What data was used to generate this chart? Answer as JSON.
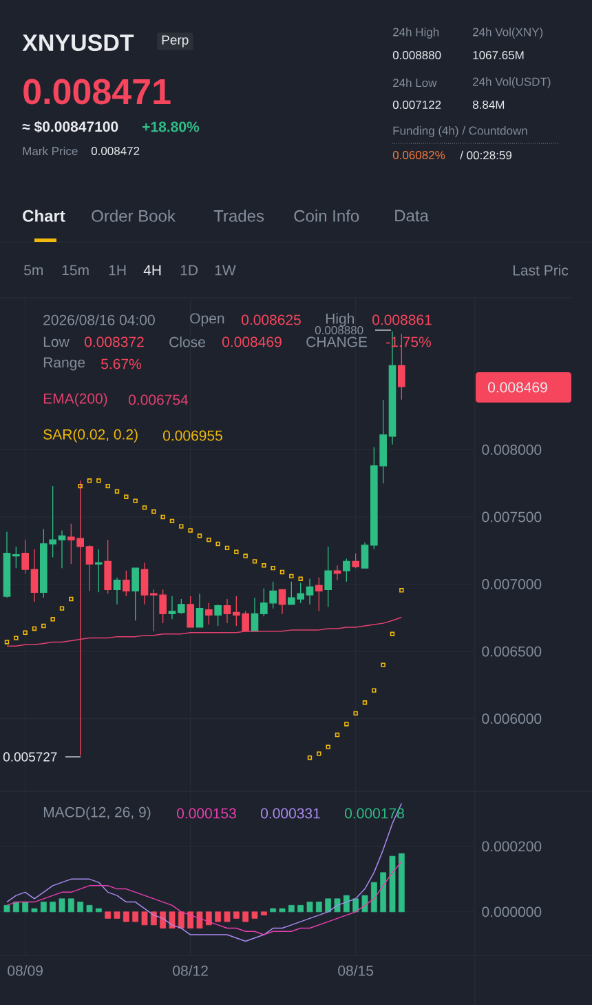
{
  "chart_data": [
    {
      "type": "candlestick",
      "title": "XNYUSDT",
      "categories": [
        null,
        null,
        null,
        null,
        null,
        null,
        null,
        null,
        null,
        null,
        null,
        null,
        null,
        null,
        null,
        null,
        null,
        null,
        null,
        null,
        null,
        null,
        null,
        null,
        null,
        null,
        null,
        null,
        null,
        null,
        null,
        null,
        null,
        null,
        null,
        null,
        null,
        null,
        null,
        null,
        null,
        null,
        null,
        null
      ],
      "ohlc": [
        [
          0.00691,
          0.00739,
          0.0069,
          0.00723
        ],
        [
          0.00721,
          0.00728,
          0.00712,
          0.00722
        ],
        [
          0.00723,
          0.00733,
          0.00708,
          0.00711
        ],
        [
          0.00711,
          0.00726,
          0.00687,
          0.00694
        ],
        [
          0.00694,
          0.00741,
          0.0069,
          0.0073
        ],
        [
          0.0073,
          0.00773,
          0.0072,
          0.00733
        ],
        [
          0.00733,
          0.0074,
          0.00712,
          0.00736
        ],
        [
          0.00735,
          0.00745,
          0.00715,
          0.00733
        ],
        [
          0.00734,
          0.00777,
          0.005727,
          0.00728
        ],
        [
          0.00728,
          0.00729,
          0.00695,
          0.00715
        ],
        [
          0.00715,
          0.00726,
          0.00694,
          0.00716
        ],
        [
          0.00717,
          0.00733,
          0.00693,
          0.00696
        ],
        [
          0.00696,
          0.00705,
          0.00685,
          0.00703
        ],
        [
          0.00703,
          0.0071,
          0.00691,
          0.00695
        ],
        [
          0.00695,
          0.00712,
          0.00673,
          0.00712
        ],
        [
          0.00711,
          0.00716,
          0.00685,
          0.00692
        ],
        [
          0.00693,
          0.00696,
          0.00665,
          0.00692
        ],
        [
          0.00692,
          0.00696,
          0.00671,
          0.00678
        ],
        [
          0.00678,
          0.00691,
          0.00674,
          0.0068
        ],
        [
          0.00679,
          0.00689,
          0.00678,
          0.00685
        ],
        [
          0.00685,
          0.00691,
          0.00668,
          0.00668
        ],
        [
          0.00668,
          0.00693,
          0.00668,
          0.00682
        ],
        [
          0.00681,
          0.00686,
          0.0067,
          0.00677
        ],
        [
          0.00677,
          0.00685,
          0.00669,
          0.00684
        ],
        [
          0.00684,
          0.00689,
          0.00671,
          0.00678
        ],
        [
          0.00679,
          0.00691,
          0.00669,
          0.00677
        ],
        [
          0.00678,
          0.0068,
          0.00665,
          0.00665
        ],
        [
          0.00665,
          0.0069,
          0.00665,
          0.00678
        ],
        [
          0.00678,
          0.00697,
          0.00676,
          0.00686
        ],
        [
          0.00686,
          0.00702,
          0.00682,
          0.00695
        ],
        [
          0.00696,
          0.00696,
          0.00678,
          0.00685
        ],
        [
          0.00685,
          0.00702,
          0.00685,
          0.0069
        ],
        [
          0.00689,
          0.00701,
          0.00686,
          0.00693
        ],
        [
          0.00692,
          0.00704,
          0.00685,
          0.00698
        ],
        [
          0.00699,
          0.00705,
          0.0068,
          0.00695
        ],
        [
          0.00696,
          0.00728,
          0.00683,
          0.0071
        ],
        [
          0.0071,
          0.00714,
          0.00703,
          0.00708
        ],
        [
          0.0071,
          0.00719,
          0.00702,
          0.00717
        ],
        [
          0.00717,
          0.00723,
          0.00712,
          0.00713
        ],
        [
          0.00712,
          0.00731,
          0.00712,
          0.00729
        ],
        [
          0.00729,
          0.00802,
          0.00726,
          0.00788
        ],
        [
          0.00788,
          0.00837,
          0.00775,
          0.00811
        ],
        [
          0.0081,
          0.00888,
          0.00804,
          0.008625
        ],
        [
          0.008625,
          0.008861,
          0.008372,
          0.008469
        ]
      ],
      "colors": [
        "#2ebd85",
        "#2ebd85",
        "#f6465d",
        "#f6465d",
        "#2ebd85",
        "#2ebd85",
        "#2ebd85",
        "#f6465d",
        "#f6465d",
        "#f6465d",
        "#2ebd85",
        "#f6465d",
        "#2ebd85",
        "#f6465d",
        "#2ebd85",
        "#f6465d",
        "#f6465d",
        "#f6465d",
        "#2ebd85",
        "#2ebd85",
        "#f6465d",
        "#2ebd85",
        "#f6465d",
        "#2ebd85",
        "#f6465d",
        "#f6465d",
        "#f6465d",
        "#2ebd85",
        "#2ebd85",
        "#2ebd85",
        "#f6465d",
        "#2ebd85",
        "#2ebd85",
        "#2ebd85",
        "#f6465d",
        "#2ebd85",
        "#f6465d",
        "#2ebd85",
        "#f6465d",
        "#2ebd85",
        "#2ebd85",
        "#2ebd85",
        "#2ebd85",
        "#f6465d"
      ],
      "series": [
        {
          "name": "EMA(200)",
          "type": "line",
          "color": "#e2416e",
          "values": [
            0.00654,
            0.00654,
            0.00655,
            0.00655,
            0.00656,
            0.00657,
            0.00657,
            0.00658,
            0.00659,
            0.0066,
            0.0066,
            0.0066,
            0.00661,
            0.00661,
            0.00661,
            0.00662,
            0.00662,
            0.00663,
            0.00663,
            0.00663,
            0.00664,
            0.00664,
            0.00664,
            0.00664,
            0.00664,
            0.00664,
            0.00665,
            0.00665,
            0.00665,
            0.00665,
            0.00665,
            0.00666,
            0.00666,
            0.00666,
            0.00666,
            0.00667,
            0.00667,
            0.00668,
            0.00668,
            0.00669,
            0.0067,
            0.00671,
            0.00673,
            0.006754
          ]
        },
        {
          "name": "SAR(0.02, 0.2)",
          "type": "scatter",
          "marker": "square",
          "color": "#f0b90b",
          "values": [
            0.00657,
            0.0066,
            0.00664,
            0.00667,
            0.00669,
            0.00674,
            0.00682,
            0.00689,
            0.00773,
            0.00777,
            0.00777,
            0.00773,
            0.00769,
            0.00765,
            0.00762,
            0.00757,
            0.00754,
            0.0075,
            0.00747,
            0.00743,
            0.0074,
            0.00736,
            0.00733,
            0.0073,
            0.00727,
            0.00724,
            0.00721,
            0.00717,
            0.00714,
            0.00712,
            0.00709,
            0.00706,
            0.00704,
            0.00571,
            0.00574,
            0.00579,
            0.00588,
            0.00596,
            0.00604,
            0.00612,
            0.00621,
            0.0064,
            0.00663,
            0.006955
          ]
        }
      ],
      "ylim": [
        0.00546,
        0.00913
      ],
      "yticks": [
        {
          "value": 0.006,
          "label": "0.006000"
        },
        {
          "value": 0.0065,
          "label": "0.006500"
        },
        {
          "value": 0.007,
          "label": "0.007000"
        },
        {
          "value": 0.0075,
          "label": "0.007500"
        },
        {
          "value": 0.008,
          "label": "0.008000"
        }
      ],
      "tick_labels": "y",
      "grid": true,
      "annotations": [
        "Perp",
        "0.008471",
        "≈ $0.00847100",
        "+18.80%",
        "Mark Price",
        "0.008472",
        "24h High",
        "0.008880",
        "24h Vol(XNY)",
        "1067.65M",
        "24h Low",
        "0.007122",
        "24h Vol(USDT)",
        "8.84M",
        "Funding (4h) / Countdown",
        "0.06082%",
        "/ 00:28:59",
        "Chart",
        "Order Book",
        "Trades",
        "Coin Info",
        "Data",
        "5m",
        "15m",
        "1H",
        "4H",
        "1D",
        "1W",
        "Last Pric",
        "2026/08/16 04:00",
        "Open",
        "0.008625",
        "High",
        "0.008861",
        "Low",
        "0.008372",
        "Close",
        "0.008469",
        "CHANGE",
        "-1.75%",
        "Range",
        "5.67%",
        "0.006754",
        "0.006955",
        "0.008880",
        "0.005727",
        "0.008469"
      ]
    },
    {
      "type": "bar",
      "title": "MACD(12, 26, 9)",
      "categories": [
        null,
        null,
        "08/09",
        null,
        null,
        null,
        null,
        null,
        null,
        null,
        null,
        null,
        null,
        null,
        null,
        null,
        null,
        null,
        null,
        null,
        "08/12",
        null,
        null,
        null,
        null,
        null,
        null,
        null,
        null,
        null,
        null,
        null,
        null,
        null,
        null,
        null,
        null,
        null,
        "08/15",
        null,
        null,
        null,
        null,
        null
      ],
      "series": [
        {
          "type": "bar",
          "values": [
            2e-05,
            3e-05,
            3e-05,
            1e-05,
            3e-05,
            3e-05,
            4e-05,
            4e-05,
            3e-05,
            2e-05,
            1e-05,
            -2e-05,
            -2e-05,
            -3e-05,
            -3e-05,
            -4e-05,
            -4e-05,
            -5e-05,
            -5e-05,
            -5e-05,
            -5e-05,
            -5e-05,
            -4e-05,
            -3e-05,
            -3e-05,
            -2e-05,
            -3e-05,
            -2e-05,
            -1e-05,
            1e-05,
            1e-05,
            2e-05,
            2e-05,
            3e-05,
            3e-05,
            4e-05,
            4e-05,
            5e-05,
            4e-05,
            5e-05,
            9e-05,
            0.00012,
            0.00017,
            0.000178
          ],
          "colors": [
            "#2ebd85",
            "#2ebd85",
            "#2ebd85",
            "#2ebd85",
            "#2ebd85",
            "#2ebd85",
            "#2ebd85",
            "#2ebd85",
            "#2ebd85",
            "#2ebd85",
            "#2ebd85",
            "#f6465d",
            "#f6465d",
            "#f6465d",
            "#f6465d",
            "#f6465d",
            "#f6465d",
            "#f6465d",
            "#f6465d",
            "#f6465d",
            "#f6465d",
            "#f6465d",
            "#f6465d",
            "#f6465d",
            "#f6465d",
            "#f6465d",
            "#f6465d",
            "#f6465d",
            "#f6465d",
            "#2ebd85",
            "#2ebd85",
            "#2ebd85",
            "#2ebd85",
            "#2ebd85",
            "#2ebd85",
            "#2ebd85",
            "#2ebd85",
            "#2ebd85",
            "#2ebd85",
            "#2ebd85",
            "#2ebd85",
            "#2ebd85",
            "#2ebd85",
            "#2ebd85"
          ]
        },
        {
          "type": "line",
          "color": "#a98bf0",
          "values": [
            3e-05,
            5e-05,
            6e-05,
            4e-05,
            6e-05,
            8e-05,
            9e-05,
            0.0001,
            0.0001,
            0.0001,
            9e-05,
            6e-05,
            5e-05,
            3e-05,
            3e-05,
            1e-05,
            -1e-05,
            -2e-05,
            -4e-05,
            -5e-05,
            -7e-05,
            -7e-05,
            -7e-05,
            -7e-05,
            -7e-05,
            -8e-05,
            -9e-05,
            -8e-05,
            -7e-05,
            -5e-05,
            -5e-05,
            -4e-05,
            -3e-05,
            -2e-05,
            -1e-05,
            0,
            2e-05,
            3e-05,
            4e-05,
            7e-05,
            0.00012,
            0.00019,
            0.00027,
            0.000331
          ]
        },
        {
          "type": "line",
          "color": "#e83fae",
          "values": [
            2e-05,
            3e-05,
            3e-05,
            3e-05,
            4e-05,
            5e-05,
            6e-05,
            6e-05,
            7e-05,
            8e-05,
            8e-05,
            8e-05,
            7e-05,
            7e-05,
            6e-05,
            5e-05,
            4e-05,
            3e-05,
            2e-05,
            0,
            -1e-05,
            -2e-05,
            -3e-05,
            -4e-05,
            -5e-05,
            -5e-05,
            -6e-05,
            -6e-05,
            -7e-05,
            -6e-05,
            -6e-05,
            -6e-05,
            -5e-05,
            -5e-05,
            -4e-05,
            -3e-05,
            -2e-05,
            -1e-05,
            0,
            2e-05,
            4e-05,
            8e-05,
            0.00012,
            0.000153
          ]
        }
      ],
      "ylim": [
        -0.000133,
        0.000364
      ],
      "yticks": [
        {
          "value": 0,
          "label": "0.000000"
        },
        {
          "value": 0.0002,
          "label": "0.000200"
        }
      ],
      "grid": true,
      "annotations": [
        "0.000153",
        "0.000331",
        "0.000178"
      ]
    }
  ]
}
